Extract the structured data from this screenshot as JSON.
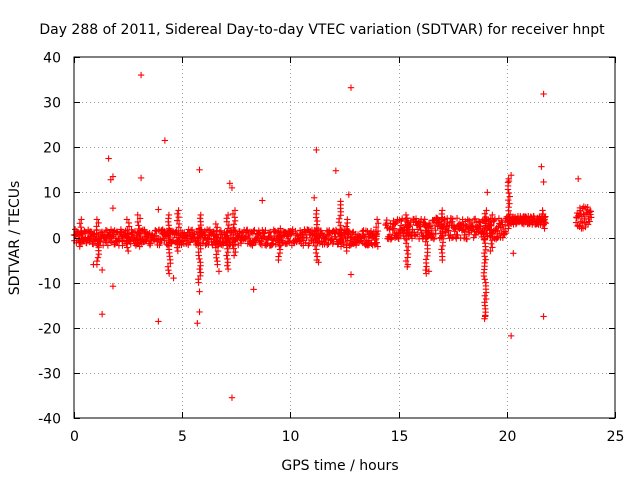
{
  "chart_data": {
    "type": "scatter",
    "title": "Day 288 of 2011, Sidereal Day-to-day VTEC variation (SDTVAR) for receiver hnpt",
    "xlabel": "GPS time / hours",
    "ylabel": "SDTVAR / TECUs",
    "xlim": [
      0,
      25
    ],
    "ylim": [
      -40,
      40
    ],
    "x_ticks": [
      0,
      5,
      10,
      15,
      20,
      25
    ],
    "y_ticks": [
      -40,
      -30,
      -20,
      -10,
      0,
      10,
      20,
      30,
      40
    ],
    "x_tick_labels": [
      "0",
      "5",
      "10",
      "15",
      "20",
      "25"
    ],
    "y_tick_labels": [
      "-40",
      "-30",
      "-20",
      "-10",
      "0",
      "10",
      "20",
      "30",
      "40"
    ],
    "grid": true,
    "marker": "+",
    "color": "#ff0000",
    "band_series": [
      {
        "name": "band-a",
        "x_start": 0.0,
        "x_end": 14.0,
        "center": 0.0,
        "half_width": 1.8
      },
      {
        "name": "band-b",
        "x_start": 14.4,
        "x_end": 20.0,
        "center": 2.0,
        "half_width": 2.4
      },
      {
        "name": "band-c",
        "x_start": 20.0,
        "x_end": 21.8,
        "center": 3.8,
        "half_width": 1.0
      },
      {
        "name": "band-d",
        "x_start": 23.2,
        "x_end": 23.9,
        "center": 4.5,
        "half_width": 2.5
      }
    ],
    "spike_series": [
      {
        "x": 0.3,
        "y_min": -2,
        "y_max": 4
      },
      {
        "x": 1.1,
        "y_min": -6,
        "y_max": 4
      },
      {
        "x": 2.5,
        "y_min": -3,
        "y_max": 4
      },
      {
        "x": 3.0,
        "y_min": -2,
        "y_max": 5
      },
      {
        "x": 4.4,
        "y_min": -8,
        "y_max": 5
      },
      {
        "x": 4.8,
        "y_min": -3,
        "y_max": 6
      },
      {
        "x": 5.8,
        "y_min": -10,
        "y_max": 5
      },
      {
        "x": 6.6,
        "y_min": -6,
        "y_max": 3
      },
      {
        "x": 7.1,
        "y_min": -7,
        "y_max": 5
      },
      {
        "x": 7.4,
        "y_min": -4,
        "y_max": 6
      },
      {
        "x": 9.5,
        "y_min": -5,
        "y_max": 2
      },
      {
        "x": 11.2,
        "y_min": -5,
        "y_max": 6
      },
      {
        "x": 12.3,
        "y_min": -2,
        "y_max": 8
      },
      {
        "x": 12.6,
        "y_min": -3,
        "y_max": 4
      },
      {
        "x": 14.0,
        "y_min": -2,
        "y_max": 4
      },
      {
        "x": 15.4,
        "y_min": -6,
        "y_max": 5
      },
      {
        "x": 16.3,
        "y_min": -8,
        "y_max": 3
      },
      {
        "x": 17.0,
        "y_min": -5,
        "y_max": 6
      },
      {
        "x": 19.0,
        "y_min": -18,
        "y_max": 6
      },
      {
        "x": 19.3,
        "y_min": -3,
        "y_max": 5
      },
      {
        "x": 20.1,
        "y_min": 2,
        "y_max": 13
      },
      {
        "x": 21.7,
        "y_min": 2,
        "y_max": 6
      }
    ],
    "outlier_points": [
      {
        "x": 3.1,
        "y": 36.0
      },
      {
        "x": 4.2,
        "y": 21.5
      },
      {
        "x": 1.6,
        "y": 17.5
      },
      {
        "x": 1.8,
        "y": 13.5
      },
      {
        "x": 1.7,
        "y": 12.8
      },
      {
        "x": 3.1,
        "y": 13.2
      },
      {
        "x": 5.8,
        "y": 15.0
      },
      {
        "x": 1.8,
        "y": 6.5
      },
      {
        "x": 3.9,
        "y": 6.2
      },
      {
        "x": 7.2,
        "y": 12.0
      },
      {
        "x": 7.3,
        "y": 11.0
      },
      {
        "x": 8.7,
        "y": 8.2
      },
      {
        "x": 11.2,
        "y": 19.4
      },
      {
        "x": 12.1,
        "y": 14.8
      },
      {
        "x": 12.8,
        "y": 33.2
      },
      {
        "x": 12.7,
        "y": 9.5
      },
      {
        "x": 11.1,
        "y": 8.8
      },
      {
        "x": 19.1,
        "y": 10.0
      },
      {
        "x": 20.2,
        "y": 13.8
      },
      {
        "x": 20.1,
        "y": 12.5
      },
      {
        "x": 21.7,
        "y": 31.8
      },
      {
        "x": 21.6,
        "y": 15.7
      },
      {
        "x": 21.7,
        "y": 12.3
      },
      {
        "x": 23.3,
        "y": 13.0
      },
      {
        "x": 0.9,
        "y": -6.0
      },
      {
        "x": 1.3,
        "y": -7.2
      },
      {
        "x": 1.8,
        "y": -10.8
      },
      {
        "x": 1.3,
        "y": -17.0
      },
      {
        "x": 3.9,
        "y": -18.6
      },
      {
        "x": 4.6,
        "y": -9.0
      },
      {
        "x": 5.8,
        "y": -12.0
      },
      {
        "x": 5.8,
        "y": -16.5
      },
      {
        "x": 5.7,
        "y": -19.0
      },
      {
        "x": 6.7,
        "y": -7.5
      },
      {
        "x": 7.3,
        "y": -35.5
      },
      {
        "x": 8.3,
        "y": -11.5
      },
      {
        "x": 11.3,
        "y": -5.5
      },
      {
        "x": 12.8,
        "y": -8.2
      },
      {
        "x": 15.4,
        "y": -6.5
      },
      {
        "x": 16.4,
        "y": -7.5
      },
      {
        "x": 19.0,
        "y": -17.5
      },
      {
        "x": 20.2,
        "y": -21.8
      },
      {
        "x": 20.3,
        "y": -3.5
      },
      {
        "x": 21.7,
        "y": -17.5
      }
    ]
  }
}
